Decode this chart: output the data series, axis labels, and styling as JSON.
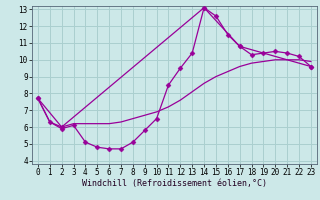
{
  "title": "",
  "xlabel": "Windchill (Refroidissement éolien,°C)",
  "ylabel": "",
  "background_color": "#cce8e8",
  "grid_color": "#aacfcf",
  "line_color": "#990099",
  "xlim": [
    -0.5,
    23.5
  ],
  "ylim": [
    3.8,
    13.2
  ],
  "yticks": [
    4,
    5,
    6,
    7,
    8,
    9,
    10,
    11,
    12,
    13
  ],
  "xticks": [
    0,
    1,
    2,
    3,
    4,
    5,
    6,
    7,
    8,
    9,
    10,
    11,
    12,
    13,
    14,
    15,
    16,
    17,
    18,
    19,
    20,
    21,
    22,
    23
  ],
  "series0_x": [
    0,
    1,
    2,
    3,
    4,
    5,
    6,
    7,
    8,
    9,
    10,
    11,
    12,
    13,
    14,
    15,
    16,
    17,
    18,
    19,
    20,
    21,
    22,
    23
  ],
  "series0_y": [
    7.7,
    6.3,
    5.9,
    6.1,
    5.1,
    4.8,
    4.7,
    4.7,
    5.1,
    5.8,
    6.5,
    8.5,
    9.5,
    10.4,
    13.1,
    12.6,
    11.5,
    10.8,
    10.3,
    10.4,
    10.5,
    10.4,
    10.2,
    9.6
  ],
  "series1_x": [
    0,
    1,
    2,
    3,
    4,
    5,
    6,
    7,
    8,
    9,
    10,
    11,
    12,
    13,
    14,
    15,
    16,
    17,
    18,
    19,
    20,
    21,
    22,
    23
  ],
  "series1_y": [
    7.7,
    6.3,
    6.0,
    6.2,
    6.2,
    6.2,
    6.2,
    6.3,
    6.5,
    6.7,
    6.9,
    7.2,
    7.6,
    8.1,
    8.6,
    9.0,
    9.3,
    9.6,
    9.8,
    9.9,
    10.0,
    10.0,
    10.0,
    9.9
  ],
  "series2_x": [
    0,
    2,
    14,
    17,
    23
  ],
  "series2_y": [
    7.7,
    6.0,
    13.1,
    10.8,
    9.6
  ],
  "tick_fontsize": 5.5,
  "label_fontsize": 6.0,
  "linewidth": 0.9,
  "marker": "D",
  "marker_size": 2.5
}
